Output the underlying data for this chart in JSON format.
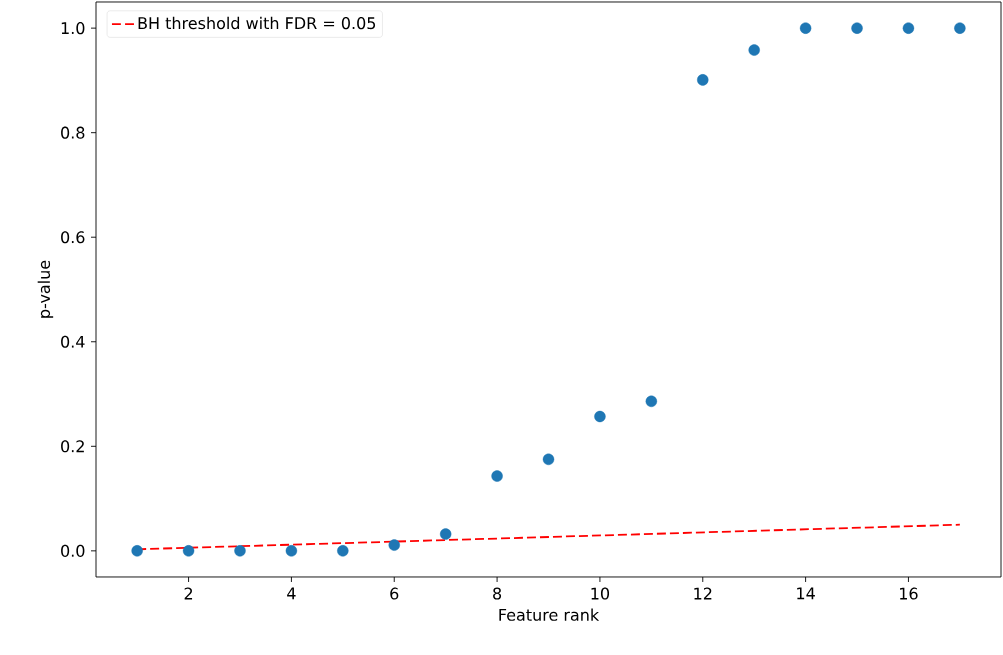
{
  "chart_data": {
    "type": "scatter",
    "xlabel": "Feature rank",
    "ylabel": "p-value",
    "xlim": [
      0.2,
      17.8
    ],
    "ylim": [
      -0.05,
      1.05
    ],
    "xticks": [
      2,
      4,
      6,
      8,
      10,
      12,
      14,
      16
    ],
    "yticks": [
      {
        "value": 0,
        "label": "0.0"
      },
      0.2,
      0.4,
      0.6,
      0.8,
      {
        "value": 1,
        "label": "1.0"
      }
    ],
    "legend": "top left",
    "grid": false,
    "series": [
      {
        "marker": "circle",
        "color": "#1f77b4",
        "x": [
          1,
          2,
          3,
          4,
          5,
          6,
          7,
          8,
          9,
          10,
          11,
          12,
          13,
          14,
          15,
          16,
          17
        ],
        "values": [
          0.0,
          0.0,
          0.0,
          0.0,
          0.0,
          0.011,
          0.032,
          0.143,
          0.175,
          0.257,
          0.286,
          0.901,
          0.958,
          1.0,
          1.0,
          1.0,
          1.0
        ]
      },
      {
        "type": "line",
        "marker": "none",
        "name": "BH threshold with FDR = 0.05",
        "color": "#ff0000",
        "line_style": "dashed",
        "x": [
          1,
          17
        ],
        "values": [
          0.003,
          0.05
        ]
      }
    ]
  }
}
